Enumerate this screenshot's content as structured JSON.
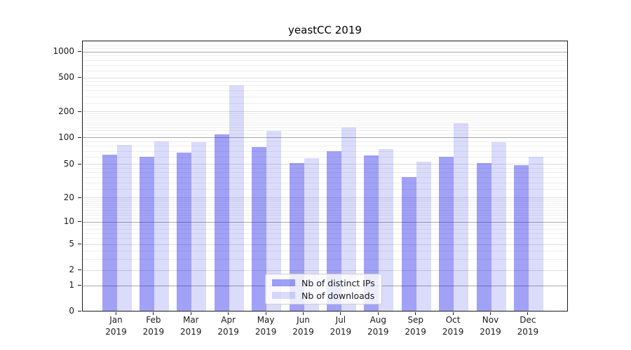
{
  "title": "yeastCC 2019",
  "legend": {
    "items": [
      {
        "label": "Nb of distinct IPs"
      },
      {
        "label": "Nb of downloads"
      }
    ]
  },
  "chart_data": {
    "type": "bar",
    "title": "yeastCC 2019",
    "categories": [
      "Jan",
      "Feb",
      "Mar",
      "Apr",
      "May",
      "Jun",
      "Jul",
      "Aug",
      "Sep",
      "Oct",
      "Nov",
      "Dec"
    ],
    "year_label": "2019",
    "series": [
      {
        "name": "Nb of distinct IPs",
        "color": "rgba(0,0,230,0.37)",
        "values": [
          62,
          58,
          65,
          106,
          76,
          50,
          68,
          61,
          34,
          58,
          50,
          47
        ]
      },
      {
        "name": "Nb of downloads",
        "color": "rgba(0,0,230,0.14)",
        "values": [
          80,
          88,
          86,
          395,
          115,
          56,
          126,
          72,
          51,
          143,
          86,
          58
        ]
      }
    ],
    "xlabel": "",
    "ylabel": "",
    "yscale": "symlog",
    "y_ticks": [
      0,
      1,
      2,
      5,
      10,
      20,
      50,
      100,
      200,
      500,
      1000
    ],
    "ylim": [
      0,
      1300
    ],
    "grid": "both",
    "legend_position": "lower center"
  }
}
